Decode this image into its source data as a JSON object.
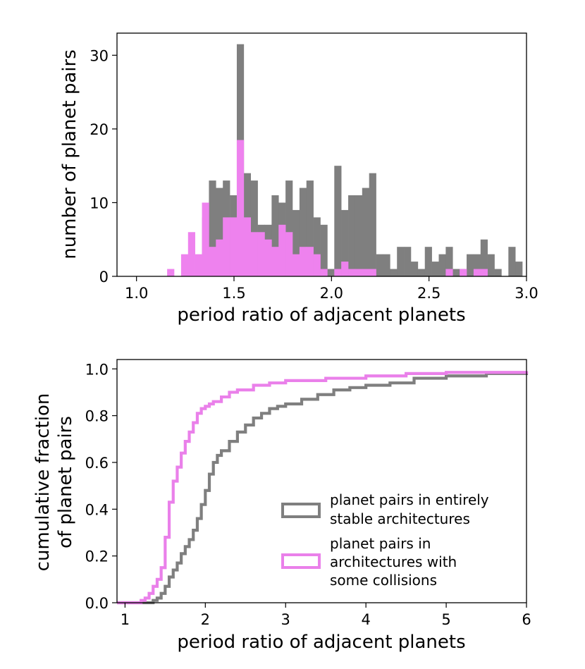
{
  "colors": {
    "stable": "#7f7f7f",
    "collisions": "#ee82ee",
    "collisions_outline": "#ea80ea"
  },
  "chart_data": [
    {
      "type": "bar",
      "subtype": "histogram",
      "xlabel": "period ratio of adjacent planets",
      "ylabel": "number of planet pairs",
      "xlim": [
        0.9,
        3.0
      ],
      "ylim": [
        0,
        33
      ],
      "xticks": [
        "1.0",
        "1.5",
        "2.0",
        "2.5",
        "3.0"
      ],
      "xtick_values": [
        1.0,
        1.5,
        2.0,
        2.5,
        3.0
      ],
      "yticks": [
        "0",
        "10",
        "20",
        "30"
      ],
      "ytick_values": [
        0,
        10,
        20,
        30
      ],
      "bin_width": 0.0357,
      "series": [
        {
          "name": "planet pairs in entirely stable architectures",
          "bins": [
            [
              1.3357,
              1.3714,
              8
            ],
            [
              1.3714,
              1.4071,
              13
            ],
            [
              1.4071,
              1.4429,
              12
            ],
            [
              1.4429,
              1.4786,
              13
            ],
            [
              1.4786,
              1.5143,
              11
            ],
            [
              1.5143,
              1.55,
              31.5
            ],
            [
              1.55,
              1.5857,
              14
            ],
            [
              1.5857,
              1.6214,
              13
            ],
            [
              1.6214,
              1.6571,
              7
            ],
            [
              1.6571,
              1.6929,
              7
            ],
            [
              1.6929,
              1.7286,
              11
            ],
            [
              1.7286,
              1.7643,
              10
            ],
            [
              1.7643,
              1.8,
              13
            ],
            [
              1.8,
              1.8357,
              9
            ],
            [
              1.8357,
              1.8714,
              12
            ],
            [
              1.8714,
              1.9071,
              13
            ],
            [
              1.9071,
              1.9429,
              8
            ],
            [
              1.9429,
              1.9786,
              7
            ],
            [
              1.9786,
              2.0143,
              1
            ],
            [
              2.0143,
              2.05,
              15
            ],
            [
              2.05,
              2.0857,
              9
            ],
            [
              2.0857,
              2.1214,
              11
            ],
            [
              2.1214,
              2.1571,
              11
            ],
            [
              2.1571,
              2.1929,
              12
            ],
            [
              2.1929,
              2.2286,
              14
            ],
            [
              2.2286,
              2.2643,
              3
            ],
            [
              2.2643,
              2.3,
              3
            ],
            [
              2.3,
              2.3357,
              1
            ],
            [
              2.3357,
              2.3714,
              4
            ],
            [
              2.3714,
              2.4071,
              4
            ],
            [
              2.4071,
              2.4429,
              2
            ],
            [
              2.4429,
              2.4786,
              1
            ],
            [
              2.4786,
              2.5143,
              4
            ],
            [
              2.5143,
              2.55,
              2
            ],
            [
              2.55,
              2.5857,
              3
            ],
            [
              2.5857,
              2.6214,
              4
            ],
            [
              2.6214,
              2.6571,
              1
            ],
            [
              2.6571,
              2.6929,
              1
            ],
            [
              2.6929,
              2.7286,
              3
            ],
            [
              2.7286,
              2.7643,
              3
            ],
            [
              2.7643,
              2.8,
              5
            ],
            [
              2.8,
              2.8357,
              3
            ],
            [
              2.8357,
              2.8714,
              1
            ],
            [
              2.9071,
              2.9429,
              4
            ],
            [
              2.9429,
              2.9786,
              2
            ]
          ]
        },
        {
          "name": "planet pairs in architectures with some collisions",
          "bins": [
            [
              1.1571,
              1.1929,
              1
            ],
            [
              1.2286,
              1.2643,
              3
            ],
            [
              1.2643,
              1.3,
              6
            ],
            [
              1.3,
              1.3357,
              3
            ],
            [
              1.3357,
              1.3714,
              10
            ],
            [
              1.3714,
              1.4071,
              4
            ],
            [
              1.4071,
              1.4429,
              5
            ],
            [
              1.4429,
              1.4786,
              8
            ],
            [
              1.4786,
              1.5143,
              8
            ],
            [
              1.5143,
              1.55,
              18.5
            ],
            [
              1.55,
              1.5857,
              8
            ],
            [
              1.5857,
              1.6214,
              6
            ],
            [
              1.6214,
              1.6571,
              6
            ],
            [
              1.6571,
              1.6929,
              5
            ],
            [
              1.6929,
              1.7286,
              4
            ],
            [
              1.7286,
              1.7643,
              7
            ],
            [
              1.7643,
              1.8,
              6
            ],
            [
              1.8,
              1.8357,
              3
            ],
            [
              1.8357,
              1.8714,
              4
            ],
            [
              1.8714,
              1.9071,
              4
            ],
            [
              1.9071,
              1.9429,
              3
            ],
            [
              1.9429,
              1.9786,
              1
            ],
            [
              2.0143,
              2.05,
              1
            ],
            [
              2.05,
              2.0857,
              2
            ],
            [
              2.0857,
              2.1214,
              1
            ],
            [
              2.1214,
              2.1571,
              1
            ],
            [
              2.1571,
              2.1929,
              1
            ],
            [
              2.1929,
              2.2286,
              1
            ],
            [
              2.5857,
              2.6214,
              1
            ],
            [
              2.6571,
              2.6929,
              1
            ],
            [
              2.7286,
              2.7643,
              1
            ],
            [
              2.7643,
              2.8,
              1
            ]
          ]
        }
      ]
    },
    {
      "type": "line",
      "subtype": "cumulative step",
      "xlabel": "period ratio of adjacent planets",
      "ylabel": "cumulative fraction of planet pairs",
      "ylabel_lines": [
        "cumulative fraction",
        "of planet pairs"
      ],
      "xlim": [
        0.9,
        6.0
      ],
      "ylim": [
        0,
        1.04
      ],
      "xticks": [
        "1",
        "2",
        "3",
        "4",
        "5",
        "6"
      ],
      "xtick_values": [
        1,
        2,
        3,
        4,
        5,
        6
      ],
      "yticks": [
        "0.0",
        "0.2",
        "0.4",
        "0.6",
        "0.8",
        "1.0"
      ],
      "ytick_values": [
        0.0,
        0.2,
        0.4,
        0.6,
        0.8,
        1.0
      ],
      "legend_position": "lower-right",
      "series": [
        {
          "name": "planet pairs in entirely stable architectures",
          "legend_lines": [
            "planet pairs in entirely",
            "stable architectures"
          ],
          "x": [
            0.9,
            1.3,
            1.35,
            1.4,
            1.45,
            1.5,
            1.55,
            1.6,
            1.65,
            1.7,
            1.75,
            1.8,
            1.85,
            1.9,
            1.95,
            2.0,
            2.05,
            2.1,
            2.15,
            2.2,
            2.3,
            2.4,
            2.5,
            2.6,
            2.7,
            2.8,
            2.9,
            3.0,
            3.2,
            3.4,
            3.6,
            3.8,
            4.0,
            4.3,
            4.6,
            5.0,
            5.5,
            6.0
          ],
          "y": [
            0.0,
            0.0,
            0.01,
            0.02,
            0.04,
            0.07,
            0.11,
            0.14,
            0.17,
            0.21,
            0.24,
            0.27,
            0.31,
            0.36,
            0.42,
            0.48,
            0.55,
            0.6,
            0.63,
            0.65,
            0.69,
            0.73,
            0.76,
            0.79,
            0.81,
            0.83,
            0.84,
            0.85,
            0.87,
            0.89,
            0.91,
            0.92,
            0.93,
            0.94,
            0.96,
            0.97,
            0.98,
            0.99
          ]
        },
        {
          "name": "planet pairs in architectures with some collisions",
          "legend_lines": [
            "planet pairs in",
            "architectures with",
            "some collisions"
          ],
          "x": [
            0.9,
            1.15,
            1.2,
            1.25,
            1.3,
            1.35,
            1.4,
            1.45,
            1.5,
            1.55,
            1.6,
            1.65,
            1.7,
            1.75,
            1.8,
            1.85,
            1.9,
            1.95,
            2.0,
            2.05,
            2.1,
            2.2,
            2.3,
            2.4,
            2.6,
            2.8,
            3.0,
            3.5,
            4.0,
            4.5,
            5.0,
            6.0
          ],
          "y": [
            0.0,
            0.0,
            0.01,
            0.02,
            0.04,
            0.07,
            0.1,
            0.15,
            0.28,
            0.43,
            0.52,
            0.58,
            0.64,
            0.69,
            0.73,
            0.77,
            0.81,
            0.83,
            0.84,
            0.85,
            0.86,
            0.88,
            0.9,
            0.91,
            0.93,
            0.94,
            0.95,
            0.96,
            0.97,
            0.98,
            0.985,
            0.99
          ]
        }
      ]
    }
  ]
}
